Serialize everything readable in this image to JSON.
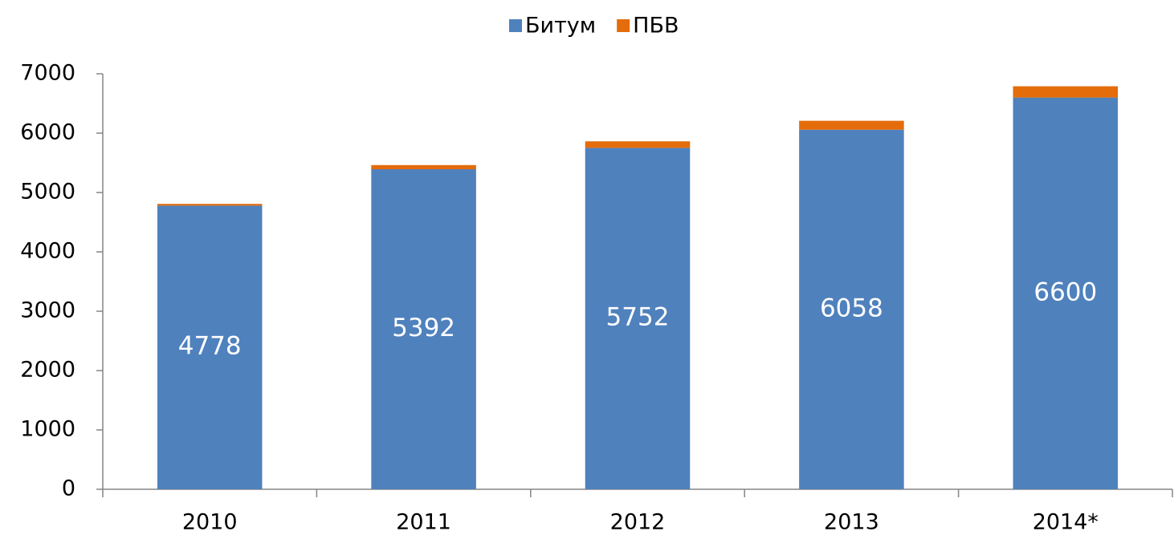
{
  "chart_data": {
    "type": "stacked_bar",
    "categories": [
      "2010",
      "2011",
      "2012",
      "2013",
      "2014*"
    ],
    "series": [
      {
        "name": "Битум",
        "color": "#4f81bd",
        "values": [
          4778,
          5392,
          5752,
          6058,
          6600
        ]
      },
      {
        "name": "ПБВ",
        "color": "#e46c0a",
        "values": [
          30,
          70,
          110,
          150,
          190
        ]
      }
    ],
    "ylim": [
      0,
      7000
    ],
    "yticks": [
      0,
      1000,
      2000,
      3000,
      4000,
      5000,
      6000,
      7000
    ],
    "grid": false,
    "legend": "top",
    "data_labels_series": 0
  }
}
